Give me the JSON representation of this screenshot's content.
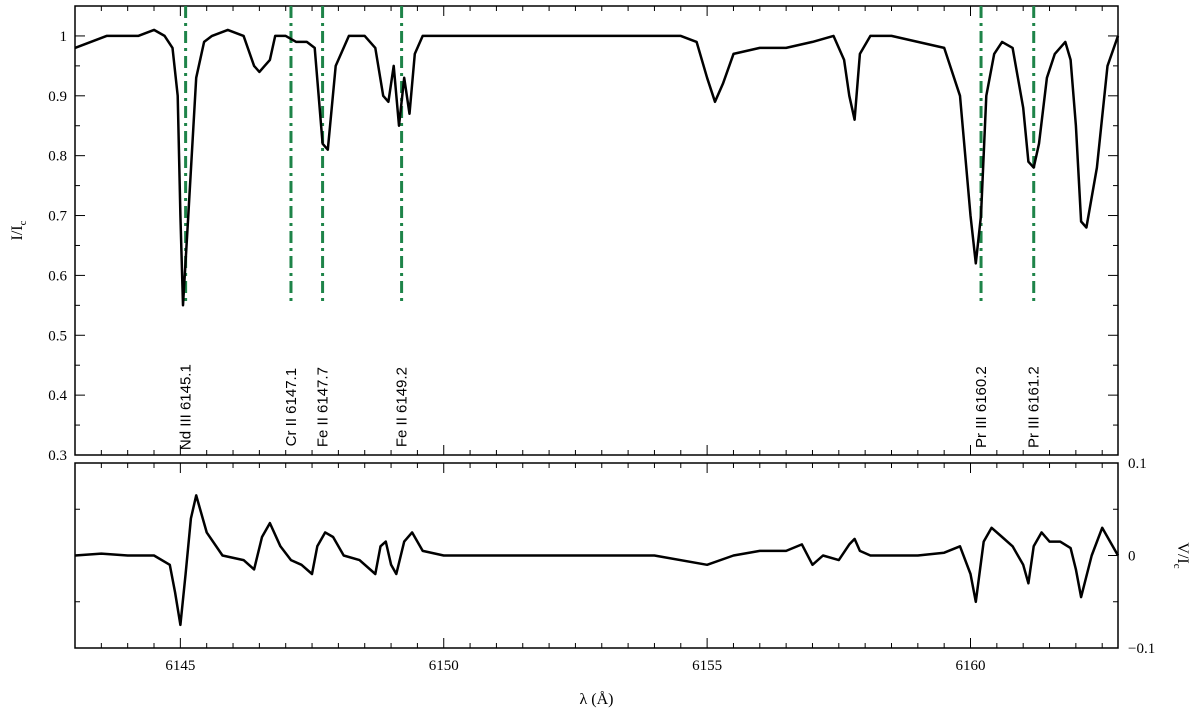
{
  "chart_data": [
    {
      "type": "line",
      "panel": "intensity",
      "title": "",
      "xlabel": "λ (Å)",
      "ylabel": "I/I",
      "ylabel_sub": "c",
      "xlim": [
        6143.0,
        6162.8
      ],
      "ylim": [
        0.3,
        1.05
      ],
      "yticks": [
        0.3,
        0.4,
        0.5,
        0.6,
        0.7,
        0.8,
        0.9,
        1.0
      ],
      "ytick_labels": [
        "0.3",
        "0.4",
        "0.5",
        "0.6",
        "0.7",
        "0.8",
        "0.9",
        "1"
      ],
      "xticks": [
        6145,
        6150,
        6155,
        6160
      ],
      "series": [
        {
          "color": "#000000",
          "x": [
            6143.0,
            6143.3,
            6143.6,
            6143.9,
            6144.2,
            6144.5,
            6144.7,
            6144.85,
            6144.95,
            6145.0,
            6145.05,
            6145.15,
            6145.3,
            6145.45,
            6145.6,
            6145.9,
            6146.2,
            6146.4,
            6146.5,
            6146.6,
            6146.7,
            6146.8,
            6147.0,
            6147.2,
            6147.4,
            6147.55,
            6147.7,
            6147.8,
            6147.95,
            6148.2,
            6148.5,
            6148.7,
            6148.85,
            6148.95,
            6149.05,
            6149.15,
            6149.25,
            6149.35,
            6149.45,
            6149.6,
            6150.0,
            6150.5,
            6151.0,
            6151.5,
            6152.0,
            6152.5,
            6153.0,
            6153.5,
            6154.0,
            6154.5,
            6154.8,
            6155.0,
            6155.15,
            6155.3,
            6155.5,
            6156.0,
            6156.5,
            6157.0,
            6157.4,
            6157.6,
            6157.7,
            6157.8,
            6157.9,
            6158.1,
            6158.5,
            6159.0,
            6159.5,
            6159.8,
            6160.0,
            6160.1,
            6160.2,
            6160.3,
            6160.45,
            6160.6,
            6160.8,
            6161.0,
            6161.1,
            6161.2,
            6161.3,
            6161.45,
            6161.6,
            6161.8,
            6161.9,
            6162.0,
            6162.1,
            6162.2,
            6162.4,
            6162.6,
            6162.8
          ],
          "y": [
            0.98,
            0.99,
            1.0,
            1.0,
            1.0,
            1.01,
            1.0,
            0.98,
            0.9,
            0.7,
            0.55,
            0.7,
            0.93,
            0.99,
            1.0,
            1.01,
            1.0,
            0.95,
            0.94,
            0.95,
            0.96,
            1.0,
            1.0,
            0.99,
            0.99,
            0.98,
            0.82,
            0.81,
            0.95,
            1.0,
            1.0,
            0.98,
            0.9,
            0.89,
            0.95,
            0.85,
            0.93,
            0.87,
            0.97,
            1.0,
            1.0,
            1.0,
            1.0,
            1.0,
            1.0,
            1.0,
            1.0,
            1.0,
            1.0,
            1.0,
            0.99,
            0.93,
            0.89,
            0.92,
            0.97,
            0.98,
            0.98,
            0.99,
            1.0,
            0.96,
            0.9,
            0.86,
            0.97,
            1.0,
            1.0,
            0.99,
            0.98,
            0.9,
            0.7,
            0.62,
            0.7,
            0.9,
            0.97,
            0.99,
            0.98,
            0.88,
            0.79,
            0.78,
            0.82,
            0.93,
            0.97,
            0.99,
            0.96,
            0.85,
            0.69,
            0.68,
            0.78,
            0.95,
            1.0
          ]
        }
      ],
      "annotations": [
        {
          "x": 6145.1,
          "label": "Nd III 6145.1",
          "y_top": 1.05,
          "y_bottom": 0.55
        },
        {
          "x": 6147.1,
          "label": "Cr II 6147.1",
          "y_top": 1.05,
          "y_bottom": 0.55
        },
        {
          "x": 6147.7,
          "label": "Fe II 6147.7",
          "y_top": 1.05,
          "y_bottom": 0.55
        },
        {
          "x": 6149.2,
          "label": "Fe II 6149.2",
          "y_top": 1.05,
          "y_bottom": 0.55
        },
        {
          "x": 6160.2,
          "label": "Pr III 6160.2",
          "y_top": 1.05,
          "y_bottom": 0.55
        },
        {
          "x": 6161.2,
          "label": "Pr III 6161.2",
          "y_top": 1.05,
          "y_bottom": 0.55
        }
      ],
      "annotation_color": "#1e8449",
      "grid": false
    },
    {
      "type": "line",
      "panel": "stokes-v",
      "title": "",
      "xlabel": "λ (Å)",
      "ylabel": "V/I",
      "ylabel_sub": "c",
      "xlim": [
        6143.0,
        6162.8
      ],
      "ylim": [
        -0.1,
        0.1
      ],
      "yticks": [
        -0.1,
        0,
        0.1
      ],
      "ytick_labels": [
        "−0.1",
        "0",
        "0.1"
      ],
      "xticks": [
        6145,
        6150,
        6155,
        6160
      ],
      "xtick_labels": [
        "6145",
        "6150",
        "6155",
        "6160"
      ],
      "series": [
        {
          "color": "#000000",
          "x": [
            6143.0,
            6143.5,
            6144.0,
            6144.5,
            6144.8,
            6144.9,
            6145.0,
            6145.1,
            6145.2,
            6145.3,
            6145.5,
            6145.8,
            6146.2,
            6146.4,
            6146.55,
            6146.7,
            6146.9,
            6147.1,
            6147.3,
            6147.5,
            6147.6,
            6147.75,
            6147.9,
            6148.1,
            6148.4,
            6148.7,
            6148.8,
            6148.9,
            6149.0,
            6149.1,
            6149.25,
            6149.4,
            6149.6,
            6150.0,
            6151.0,
            6152.0,
            6153.0,
            6154.0,
            6155.0,
            6155.5,
            6156.0,
            6156.5,
            6156.8,
            6157.0,
            6157.2,
            6157.5,
            6157.7,
            6157.8,
            6157.9,
            6158.1,
            6158.5,
            6159.0,
            6159.5,
            6159.8,
            6160.0,
            6160.1,
            6160.25,
            6160.4,
            6160.6,
            6160.8,
            6161.0,
            6161.1,
            6161.2,
            6161.35,
            6161.5,
            6161.7,
            6161.9,
            6162.0,
            6162.1,
            6162.3,
            6162.5,
            6162.8
          ],
          "y": [
            0.0,
            0.002,
            0.0,
            0.0,
            -0.01,
            -0.04,
            -0.075,
            -0.02,
            0.04,
            0.065,
            0.025,
            0.0,
            -0.005,
            -0.015,
            0.02,
            0.035,
            0.01,
            -0.005,
            -0.01,
            -0.02,
            0.01,
            0.025,
            0.02,
            0.0,
            -0.005,
            -0.02,
            0.01,
            0.015,
            -0.01,
            -0.02,
            0.015,
            0.025,
            0.005,
            0.0,
            0.0,
            0.0,
            0.0,
            0.0,
            -0.01,
            0.0,
            0.005,
            0.005,
            0.012,
            -0.01,
            0.0,
            -0.005,
            0.012,
            0.018,
            0.005,
            0.0,
            0.0,
            0.0,
            0.003,
            0.01,
            -0.02,
            -0.05,
            0.015,
            0.03,
            0.02,
            0.01,
            -0.01,
            -0.03,
            0.01,
            0.025,
            0.015,
            0.015,
            0.008,
            -0.015,
            -0.045,
            0.0,
            0.03,
            0.0
          ]
        }
      ],
      "grid": false
    }
  ]
}
